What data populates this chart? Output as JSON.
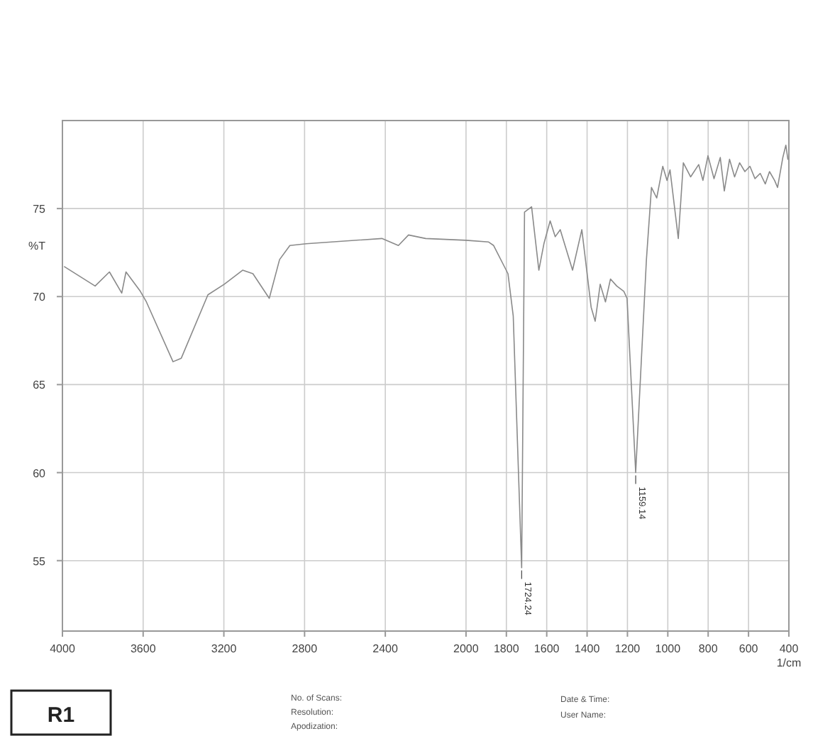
{
  "chart_data": {
    "type": "line",
    "ylabel": "%T",
    "xlabel": "1/cm",
    "x": [
      3990,
      3838,
      3767,
      3706,
      3685,
      3614,
      3584,
      3452,
      3411,
      3279,
      3198,
      3107,
      3056,
      2975,
      2924,
      2873,
      2792,
      2417,
      2335,
      2285,
      2200,
      2000,
      1888,
      1863,
      1792,
      1766,
      1724.24,
      1710,
      1675,
      1639,
      1614,
      1583,
      1558,
      1533,
      1472,
      1426,
      1380,
      1360,
      1335,
      1309,
      1284,
      1253,
      1218,
      1202,
      1159.14,
      1106,
      1081,
      1055,
      1025,
      1004,
      989,
      948,
      923,
      887,
      847,
      826,
      801,
      771,
      740,
      720,
      694,
      669,
      644,
      618,
      593,
      568,
      542,
      517,
      496,
      471,
      456,
      430,
      415,
      405
    ],
    "series": [
      {
        "color": "#8a8a8a",
        "values": [
          71.7,
          70.6,
          71.4,
          70.2,
          71.4,
          70.3,
          69.7,
          66.3,
          66.5,
          70.1,
          70.7,
          71.5,
          71.3,
          69.9,
          72.1,
          72.9,
          73.0,
          73.3,
          72.9,
          73.5,
          73.3,
          73.2,
          73.1,
          72.9,
          71.3,
          68.9,
          54.6,
          74.8,
          75.1,
          71.5,
          73.0,
          74.3,
          73.4,
          73.8,
          71.5,
          73.8,
          69.4,
          68.6,
          70.7,
          69.7,
          71.0,
          70.6,
          70.3,
          69.9,
          60.0,
          72.1,
          76.2,
          75.6,
          77.4,
          76.6,
          77.2,
          73.3,
          77.6,
          76.8,
          77.5,
          76.6,
          78.0,
          76.7,
          77.9,
          76.0,
          77.8,
          76.8,
          77.6,
          77.1,
          77.4,
          76.7,
          77.0,
          76.4,
          77.1,
          76.6,
          76.2,
          77.9,
          78.6,
          77.8
        ]
      }
    ],
    "xlim": [
      4000,
      400
    ],
    "xticks": [
      4000,
      3600,
      3200,
      2800,
      2400,
      2000,
      1800,
      1600,
      1400,
      1200,
      1000,
      800,
      600,
      400
    ],
    "ylim": [
      51,
      80
    ],
    "yticks": [
      55,
      60,
      65,
      70,
      75
    ],
    "grid": true,
    "marker": "none",
    "line_style": "solid",
    "annotations": [
      {
        "text": "1724.24",
        "x": 1724.24,
        "y": 54.6
      },
      {
        "text": "1159.14",
        "x": 1159.14,
        "y": 60.0
      },
      "R1",
      "No. of Scans:",
      "Resolution:",
      "Apodization:",
      "Date & Time:",
      "User Name:"
    ]
  }
}
